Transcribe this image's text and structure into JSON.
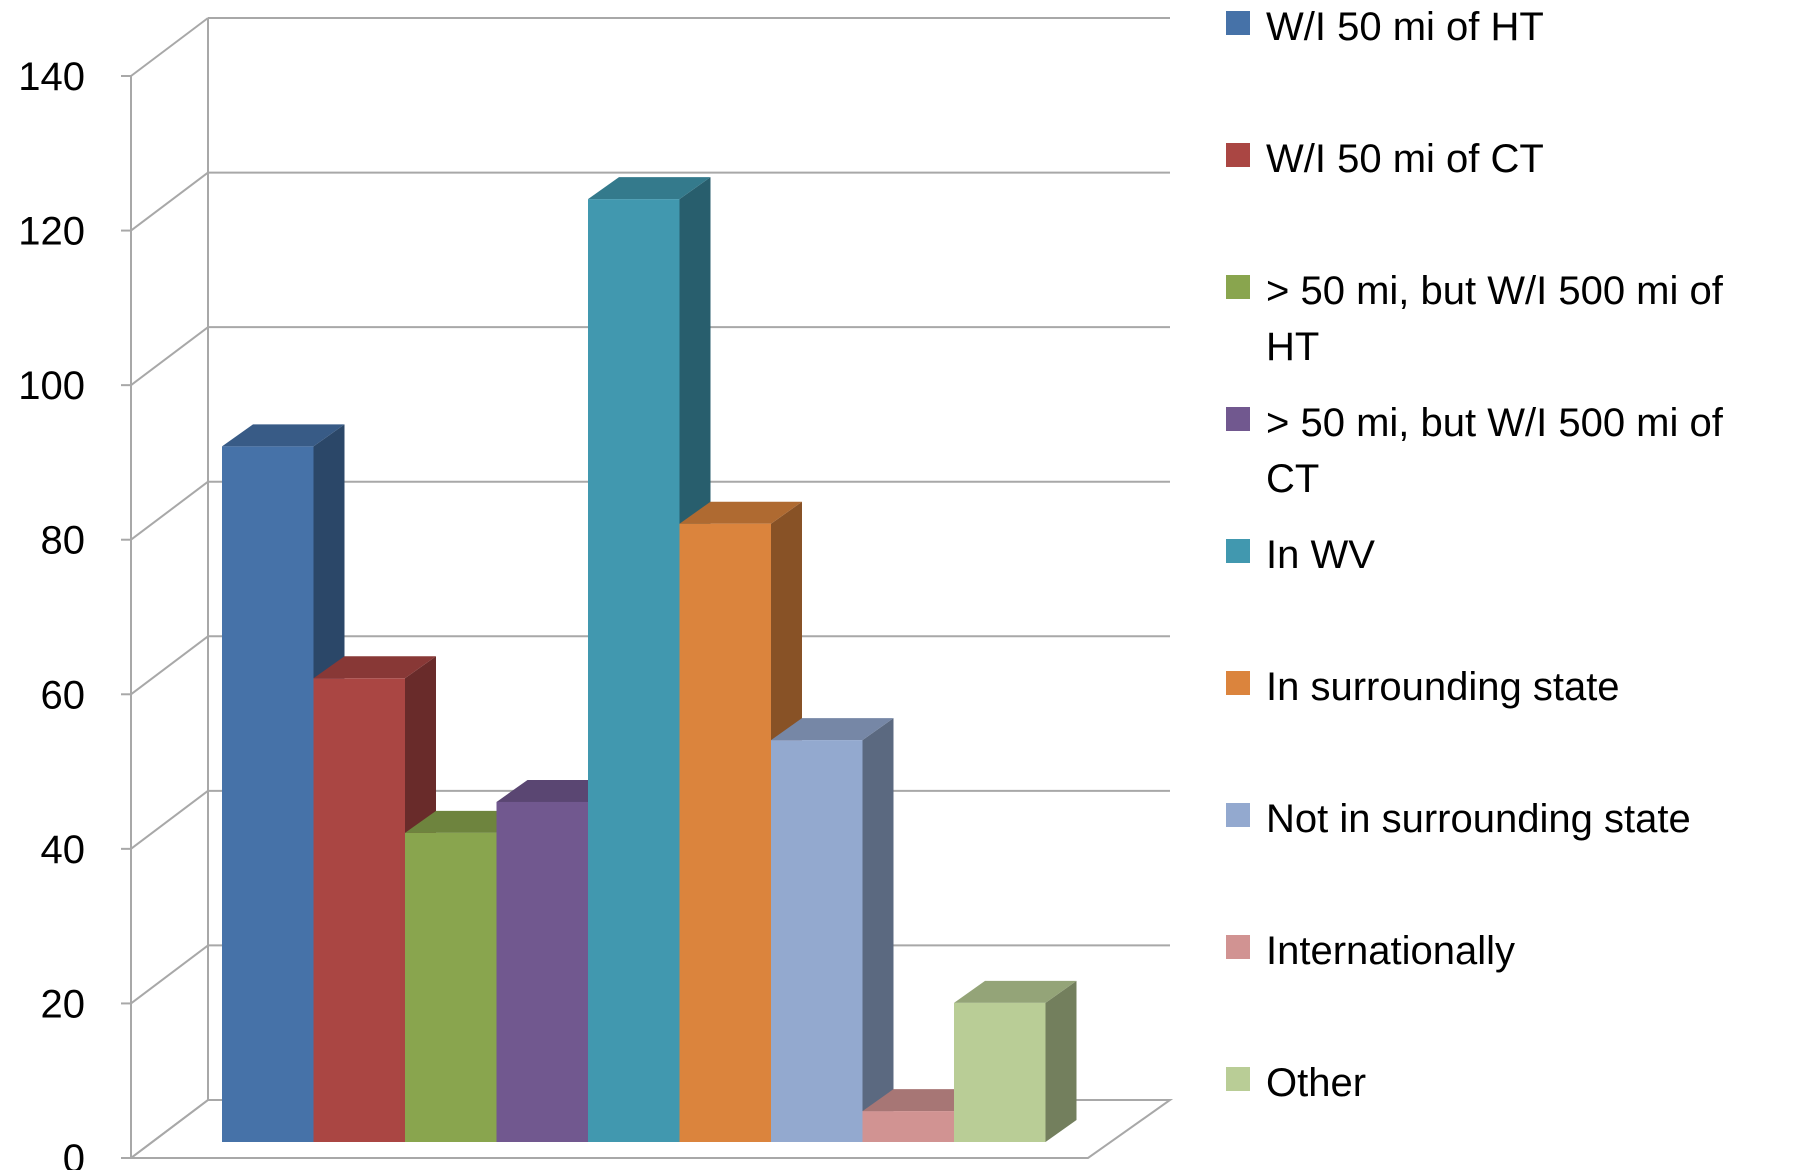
{
  "chart_data": {
    "type": "bar",
    "title": "",
    "xlabel": "",
    "ylabel": "",
    "ylim": [
      0,
      140
    ],
    "yticks": [
      0,
      20,
      40,
      60,
      80,
      100,
      120,
      140
    ],
    "grid": true,
    "legend_position": "right",
    "series": [
      {
        "name": "W/I 50 mi of HT",
        "value": 90,
        "color": "#4672A8"
      },
      {
        "name": "W/I 50 mi of CT",
        "value": 60,
        "color": "#AA4643"
      },
      {
        "name": "> 50 mi, but W/I 500 mi of HT",
        "value": 40,
        "color": "#89A54E"
      },
      {
        "name": "> 50 mi, but W/I 500 mi of CT",
        "value": 44,
        "color": "#71588F"
      },
      {
        "name": "In WV",
        "value": 122,
        "color": "#4198AF"
      },
      {
        "name": "In surrounding state",
        "value": 80,
        "color": "#DB843D"
      },
      {
        "name": "Not in surrounding state",
        "value": 52,
        "color": "#93A9CF"
      },
      {
        "name": "Internationally",
        "value": 4,
        "color": "#D19392"
      },
      {
        "name": "Other",
        "value": 18,
        "color": "#B9CD96"
      }
    ]
  }
}
